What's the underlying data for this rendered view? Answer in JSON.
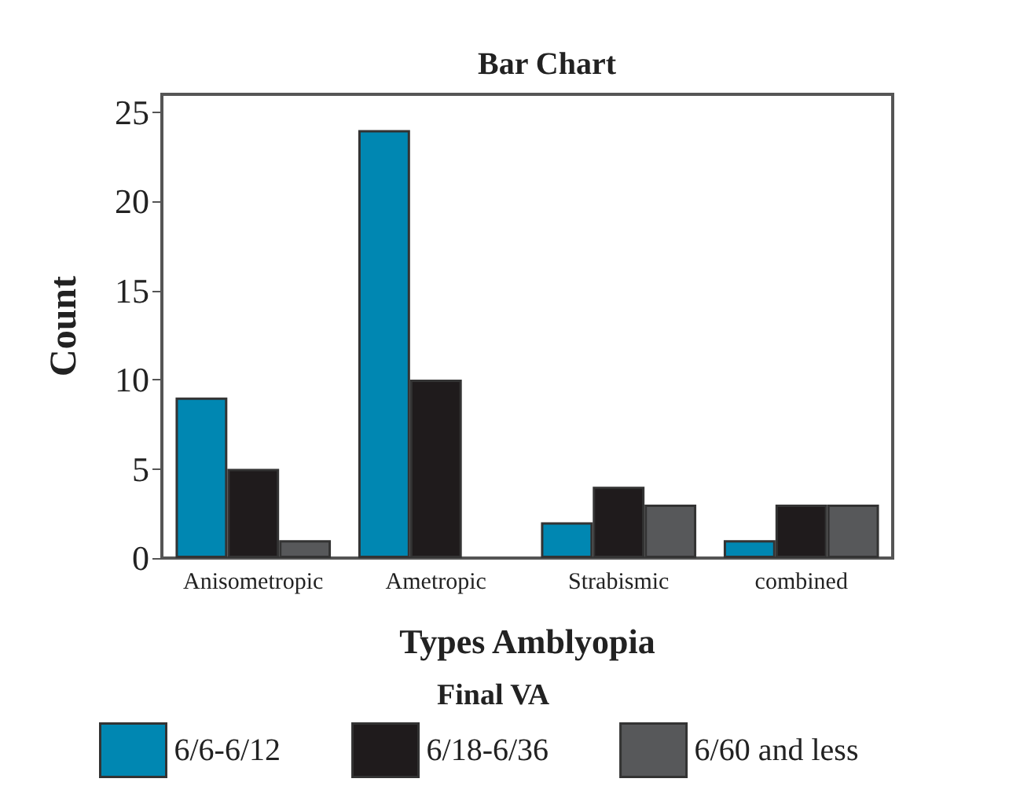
{
  "chart_data": {
    "type": "bar",
    "title": "Bar Chart",
    "xlabel": "Types Amblyopia",
    "ylabel": "Count",
    "legend_title": "Final VA",
    "categories": [
      "Anisometropic",
      "Ametropic",
      "Strabismic",
      "combined"
    ],
    "series": [
      {
        "name": "6/6-6/12",
        "color": "#0087b2",
        "values": [
          9,
          24,
          2,
          1
        ]
      },
      {
        "name": "6/18-6/36",
        "color": "#1f1b1c",
        "values": [
          5,
          10,
          4,
          3
        ]
      },
      {
        "name": "6/60 and less",
        "color": "#57585a",
        "values": [
          1,
          0,
          3,
          3
        ]
      }
    ],
    "ylim": [
      0,
      26
    ],
    "yticks": [
      0,
      5,
      10,
      15,
      20,
      25
    ],
    "grid": false,
    "legend": "bottom"
  }
}
